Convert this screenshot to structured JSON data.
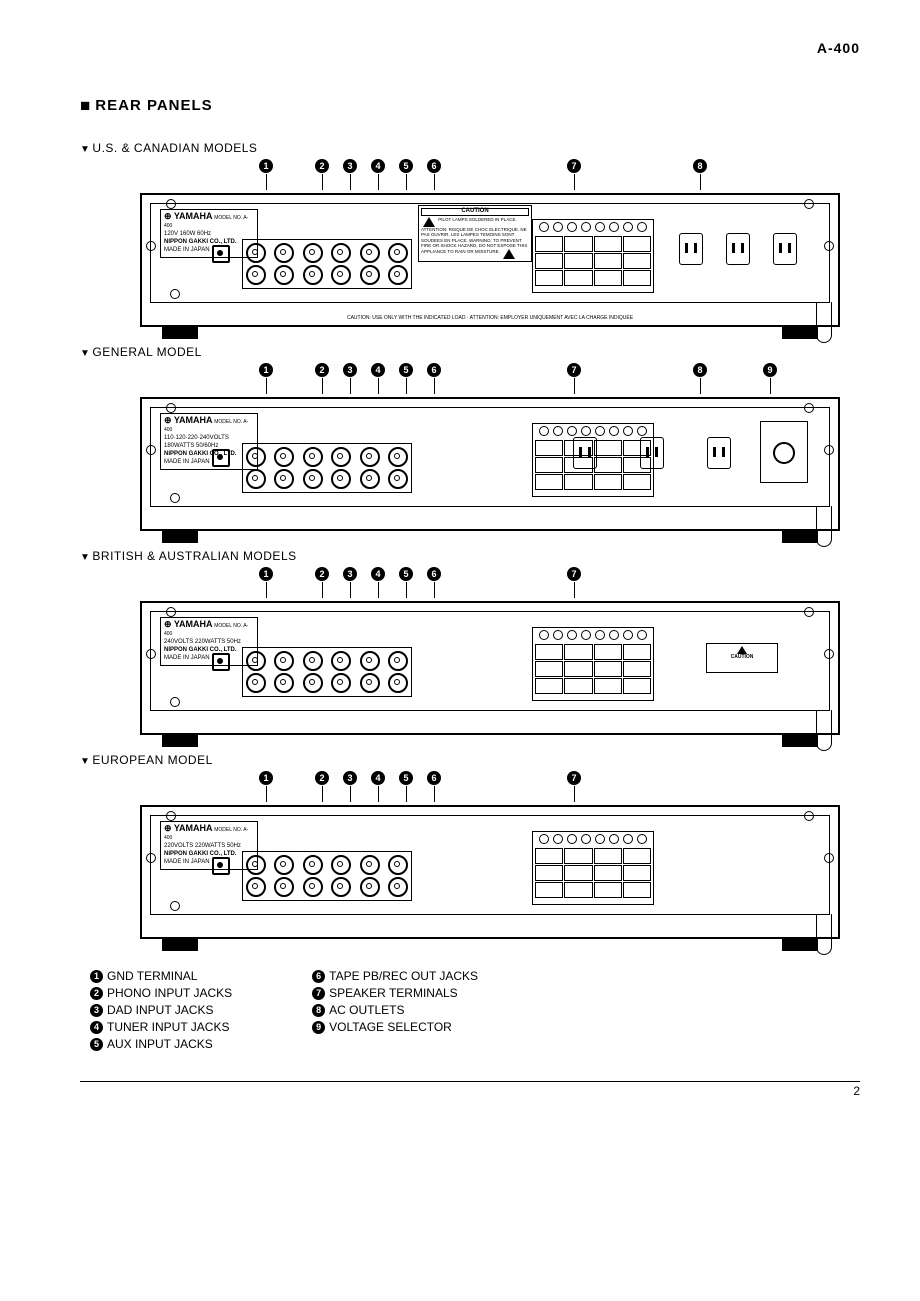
{
  "header": {
    "model": "A-400",
    "section": "REAR PANELS"
  },
  "brand": {
    "name": "YAMAHA",
    "subline": "MODEL NO. A-400",
    "mfr": "NIPPON GAKKI CO., LTD.",
    "made": "MADE IN JAPAN"
  },
  "caution": {
    "title": "CAUTION",
    "text_en": "PILOT LAMPS SOLDERED IN PLACE. ATTENTION: RISQUE DE CHOC ELECTRIQUE. NE PAS OUVRIR. LES LAMPES TEMOINS SONT SOUDEES EN PLACE. WARNING: TO PREVENT FIRE OR SHOCK HAZARD, DO NOT EXPOSE THIS APPLIANCE TO RAIN OR MOISTURE.",
    "strip": "CAUTION: USE ONLY WITH THE INDICATED LOAD · ATTENTION: EMPLOYER UNIQUEMENT AVEC LA CHARGE INDIQUÉE"
  },
  "models": [
    {
      "label": "U.S. & CANADIAN MODELS",
      "spec": "120V 160W 60Hz",
      "markers": [
        {
          "n": "1",
          "x": 18
        },
        {
          "n": "2",
          "x": 26
        },
        {
          "n": "3",
          "x": 30
        },
        {
          "n": "4",
          "x": 34
        },
        {
          "n": "5",
          "x": 38
        },
        {
          "n": "6",
          "x": 42
        },
        {
          "n": "7",
          "x": 62
        },
        {
          "n": "8",
          "x": 80
        }
      ],
      "show_caution_label": true,
      "show_ac": true,
      "ac_count": 3,
      "show_vsel": false,
      "show_side_caution": false,
      "show_strip": true
    },
    {
      "label": "GENERAL MODEL",
      "spec": "110·120·220·240VOLTS 180WATTS 50/60Hz",
      "markers": [
        {
          "n": "1",
          "x": 18
        },
        {
          "n": "2",
          "x": 26
        },
        {
          "n": "3",
          "x": 30
        },
        {
          "n": "4",
          "x": 34
        },
        {
          "n": "5",
          "x": 38
        },
        {
          "n": "6",
          "x": 42
        },
        {
          "n": "7",
          "x": 62
        },
        {
          "n": "8",
          "x": 80
        },
        {
          "n": "9",
          "x": 90
        }
      ],
      "show_caution_label": false,
      "show_ac": true,
      "ac_count": 3,
      "show_vsel": true,
      "show_side_caution": false,
      "show_strip": false
    },
    {
      "label": "BRITISH & AUSTRALIAN MODELS",
      "spec": "240VOLTS 220WATTS 50Hz",
      "markers": [
        {
          "n": "1",
          "x": 18
        },
        {
          "n": "2",
          "x": 26
        },
        {
          "n": "3",
          "x": 30
        },
        {
          "n": "4",
          "x": 34
        },
        {
          "n": "5",
          "x": 38
        },
        {
          "n": "6",
          "x": 42
        },
        {
          "n": "7",
          "x": 62
        }
      ],
      "show_caution_label": false,
      "show_ac": false,
      "ac_count": 0,
      "show_vsel": false,
      "show_side_caution": true,
      "show_strip": false
    },
    {
      "label": "EUROPEAN MODEL",
      "spec": "220VOLTS 220WATTS 50Hz",
      "markers": [
        {
          "n": "1",
          "x": 18
        },
        {
          "n": "2",
          "x": 26
        },
        {
          "n": "3",
          "x": 30
        },
        {
          "n": "4",
          "x": 34
        },
        {
          "n": "5",
          "x": 38
        },
        {
          "n": "6",
          "x": 42
        },
        {
          "n": "7",
          "x": 62
        }
      ],
      "show_caution_label": false,
      "show_ac": false,
      "ac_count": 0,
      "show_vsel": false,
      "show_side_caution": false,
      "show_strip": false
    }
  ],
  "legend": {
    "left": [
      {
        "n": "1",
        "t": "GND TERMINAL"
      },
      {
        "n": "2",
        "t": "PHONO INPUT JACKS"
      },
      {
        "n": "3",
        "t": "DAD INPUT JACKS"
      },
      {
        "n": "4",
        "t": "TUNER INPUT JACKS"
      },
      {
        "n": "5",
        "t": "AUX INPUT JACKS"
      }
    ],
    "right": [
      {
        "n": "6",
        "t": "TAPE PB/REC OUT JACKS"
      },
      {
        "n": "7",
        "t": "SPEAKER TERMINALS"
      },
      {
        "n": "8",
        "t": "AC OUTLETS"
      },
      {
        "n": "9",
        "t": "VOLTAGE SELECTOR"
      }
    ]
  },
  "page_number": "2"
}
